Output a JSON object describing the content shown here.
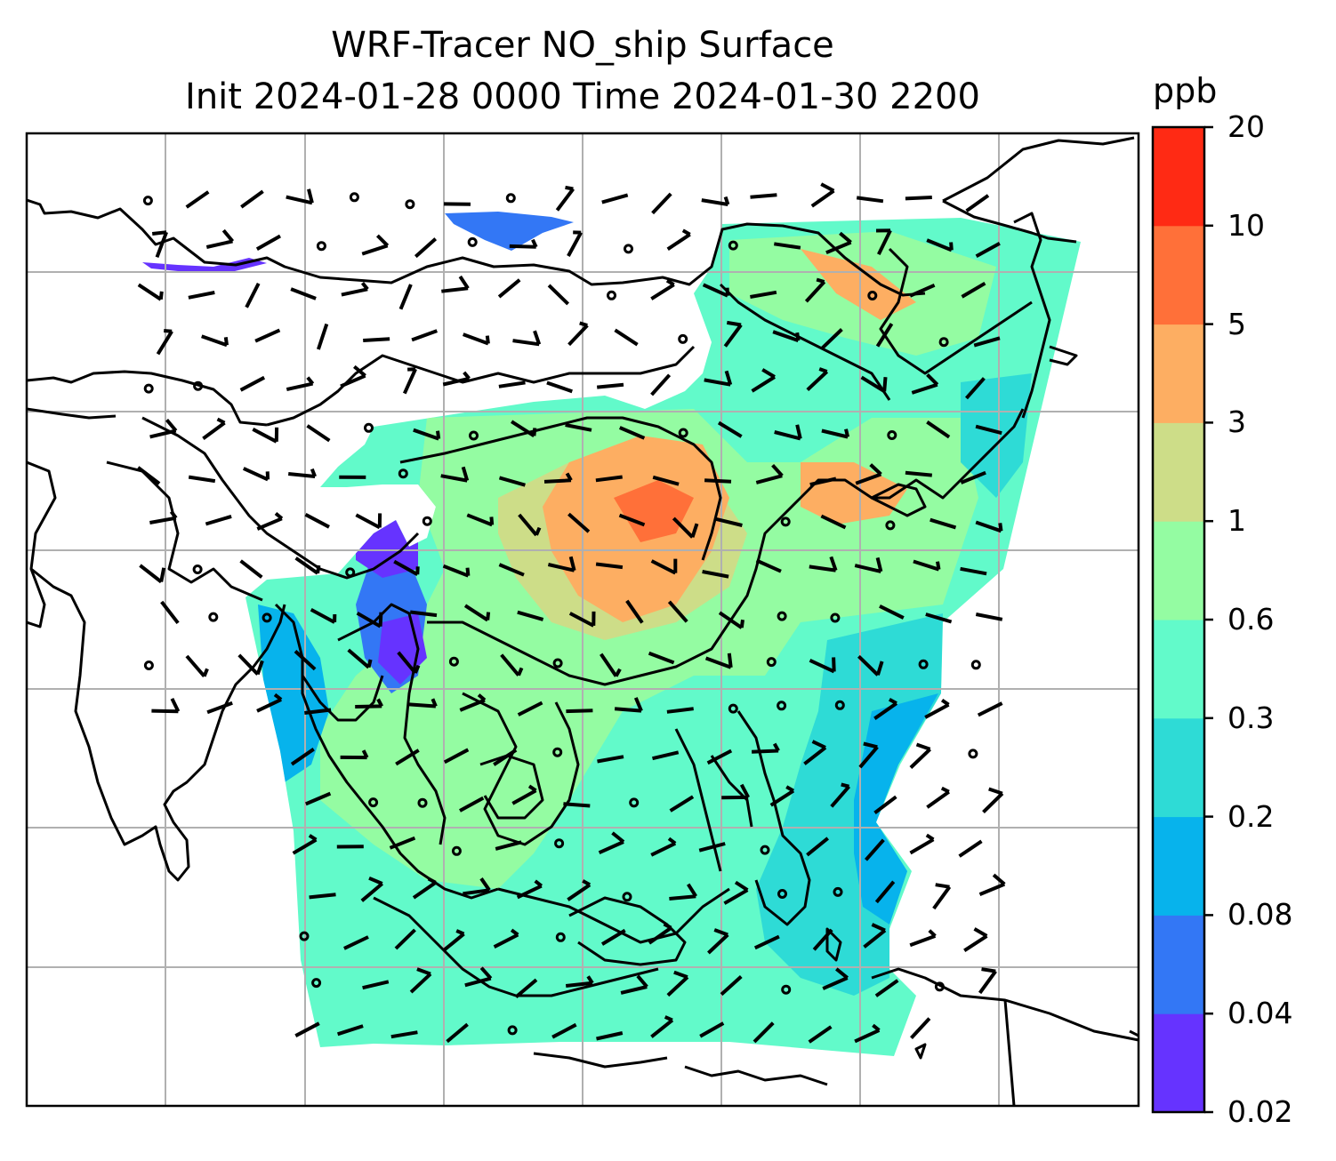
{
  "title": {
    "line1": "WRF-Tracer NO_ship Surface",
    "line2": "Init 2024-01-28 0000 Time 2024-01-30 2200"
  },
  "colorbar": {
    "unit": "ppb",
    "levels": [
      "0.02",
      "0.04",
      "0.08",
      "0.2",
      "0.3",
      "0.6",
      "1",
      "3",
      "5",
      "10",
      "20"
    ],
    "colors": [
      "#6633ff",
      "#3377f5",
      "#07b3ec",
      "#2edbd6",
      "#62faca",
      "#94fca2",
      "#cddd88",
      "#fdae62",
      "#ff7039",
      "#ff2a14"
    ]
  },
  "map": {
    "field": "NO_ship surface concentration",
    "wind_symbol": "wind barbs",
    "calm_symbol": "circle",
    "gridlines": true
  }
}
